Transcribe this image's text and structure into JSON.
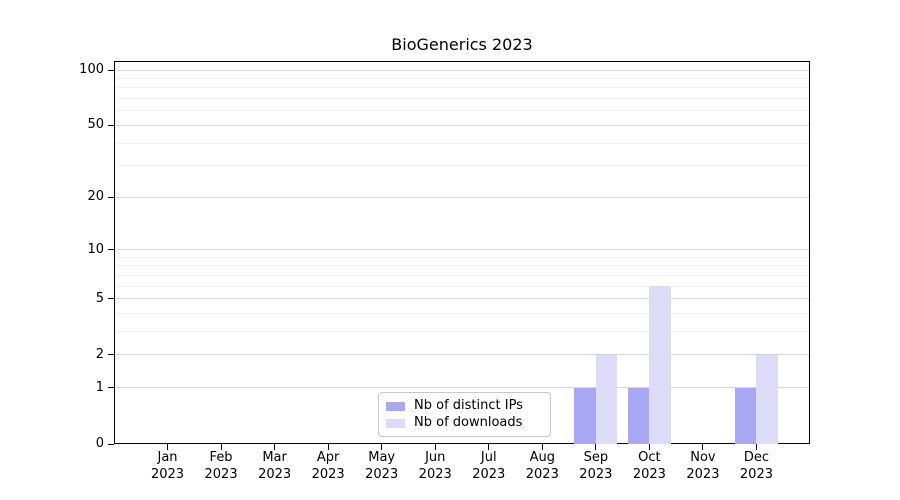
{
  "title": "BioGenerics 2023",
  "chart_data": {
    "type": "bar",
    "title": "BioGenerics 2023",
    "categories": [
      "Jan 2023",
      "Feb 2023",
      "Mar 2023",
      "Apr 2023",
      "May 2023",
      "Jun 2023",
      "Jul 2023",
      "Aug 2023",
      "Sep 2023",
      "Oct 2023",
      "Nov 2023",
      "Dec 2023"
    ],
    "series": [
      {
        "name": "Nb of distinct IPs",
        "color": "#a8a8f5",
        "values": [
          0,
          0,
          0,
          0,
          0,
          0,
          0,
          0,
          1,
          1,
          0,
          1
        ]
      },
      {
        "name": "Nb of downloads",
        "color": "#dcdcf9",
        "values": [
          0,
          0,
          0,
          0,
          0,
          0,
          0,
          0,
          2,
          6,
          0,
          2
        ]
      }
    ],
    "xlabel": "",
    "ylabel": "",
    "y_scale": "log1p",
    "y_ticks": [
      0,
      1,
      2,
      5,
      10,
      20,
      50,
      100
    ],
    "y_minor_ticks": [
      3,
      4,
      6,
      7,
      8,
      9,
      30,
      40,
      60,
      70,
      80,
      90
    ],
    "ylim": [
      0,
      112
    ],
    "grid": "horizontal",
    "legend_position": "lower center",
    "colors": {
      "grid_major": "#d7d7d7",
      "grid_minor": "#efefef",
      "axis": "#000000",
      "background": "#ffffff"
    }
  }
}
